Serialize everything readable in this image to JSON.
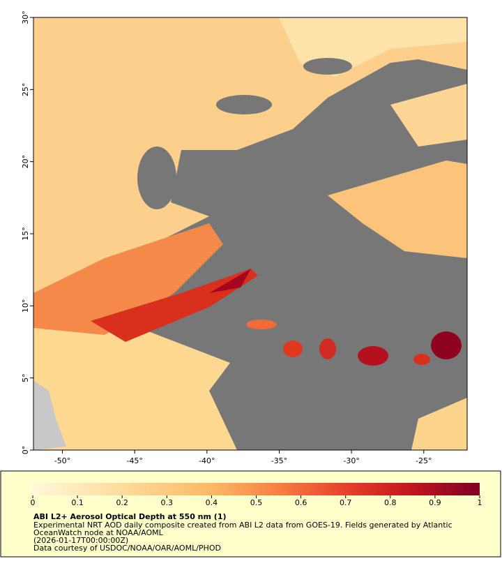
{
  "map": {
    "xlim": [
      -52,
      -22
    ],
    "ylim": [
      0,
      30
    ],
    "xticks": [
      {
        "value": -50,
        "label": "-50°"
      },
      {
        "value": -45,
        "label": "-45°"
      },
      {
        "value": -40,
        "label": "-40°"
      },
      {
        "value": -35,
        "label": "-35°"
      },
      {
        "value": -30,
        "label": "-30°"
      },
      {
        "value": -25,
        "label": "-25°"
      }
    ],
    "yticks": [
      {
        "value": 0,
        "label": "0°"
      },
      {
        "value": 5,
        "label": "5°"
      },
      {
        "value": 10,
        "label": "10°"
      },
      {
        "value": 15,
        "label": "15°"
      },
      {
        "value": 20,
        "label": "20°"
      },
      {
        "value": 25,
        "label": "25°"
      },
      {
        "value": 30,
        "label": "30°"
      }
    ]
  },
  "colorbar": {
    "lim": [
      0,
      1
    ],
    "ticks": [
      0,
      0.1,
      0.2,
      0.3,
      0.4,
      0.5,
      0.6,
      0.7,
      0.8,
      0.9,
      1
    ]
  },
  "legend": {
    "title": "ABI L2+ Aerosol Optical Depth at 550 nm (1)",
    "lines": [
      "Experimental NRT AOD daily composite created from ABI L2 data from GOES-19. Fields generated by Atlantic",
      "OceanWatch node at NOAA/AOML",
      "(2026-01-17T00:00:00Z)",
      "Data courtesy of USDOC/NOAA/OAR/AOML/PHOD"
    ]
  }
}
